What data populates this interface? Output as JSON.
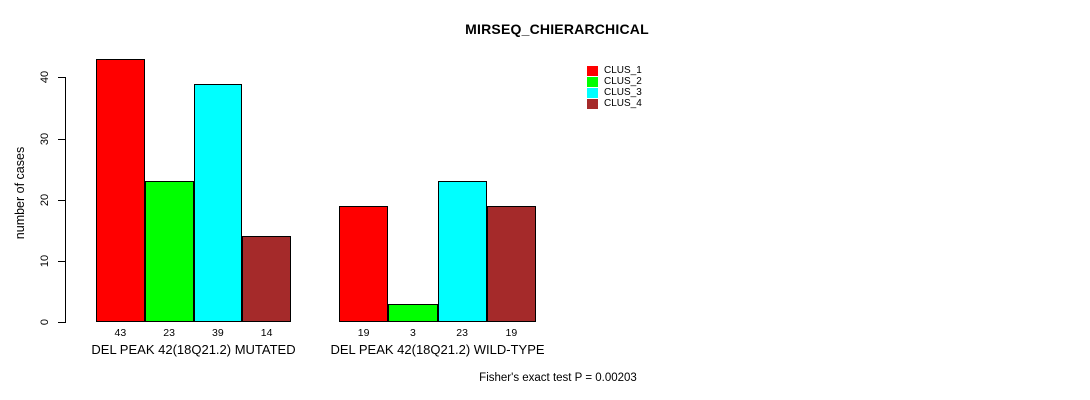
{
  "chart_data": {
    "type": "bar",
    "title": "MIRSEQ_CHIERARCHICAL",
    "ylabel": "number of cases",
    "xlabel": "",
    "ylim": [
      0,
      40
    ],
    "yticks": [
      0,
      10,
      20,
      30,
      40
    ],
    "grid": false,
    "legend_position": "top-right",
    "series": [
      {
        "name": "CLUS_1",
        "color": "#ff0000"
      },
      {
        "name": "CLUS_2",
        "color": "#00ff00"
      },
      {
        "name": "CLUS_3",
        "color": "#00ffff"
      },
      {
        "name": "CLUS_4",
        "color": "#a52a2a"
      }
    ],
    "groups": [
      {
        "label": "DEL PEAK 42(18Q21.2) MUTATED",
        "values": [
          43,
          23,
          39,
          14
        ]
      },
      {
        "label": "DEL PEAK 42(18Q21.2) WILD-TYPE",
        "values": [
          19,
          3,
          23,
          19
        ]
      }
    ],
    "bar_border_color": "#000000",
    "annotation": "Fisher's exact test P = 0.00203"
  }
}
